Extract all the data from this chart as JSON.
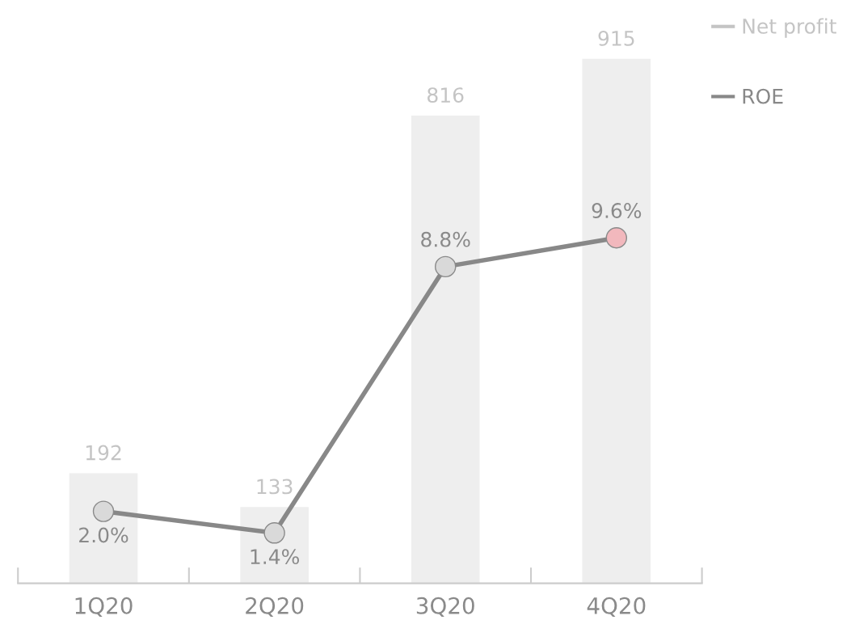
{
  "chart_data": {
    "type": "bar",
    "categories": [
      "1Q20",
      "2Q20",
      "3Q20",
      "4Q20"
    ],
    "series": [
      {
        "name": "Net profit",
        "color": "#eeeeee",
        "values": [
          192,
          133,
          816,
          915
        ]
      },
      {
        "name": "ROE",
        "type": "line",
        "axis": "y2",
        "color": "#888888",
        "colors": [
          "#d9d9d9",
          "#d9d9d9",
          "#d9d9d9",
          "#f2b8bd"
        ],
        "values": [
          2.0,
          1.4,
          8.8,
          9.6
        ],
        "value_labels": [
          "2.0%",
          "1.4%",
          "8.8%",
          "9.6%"
        ]
      }
    ],
    "data_labels": true,
    "marker": "circle",
    "line_style": "solid",
    "grid": false,
    "legend": "top right"
  }
}
